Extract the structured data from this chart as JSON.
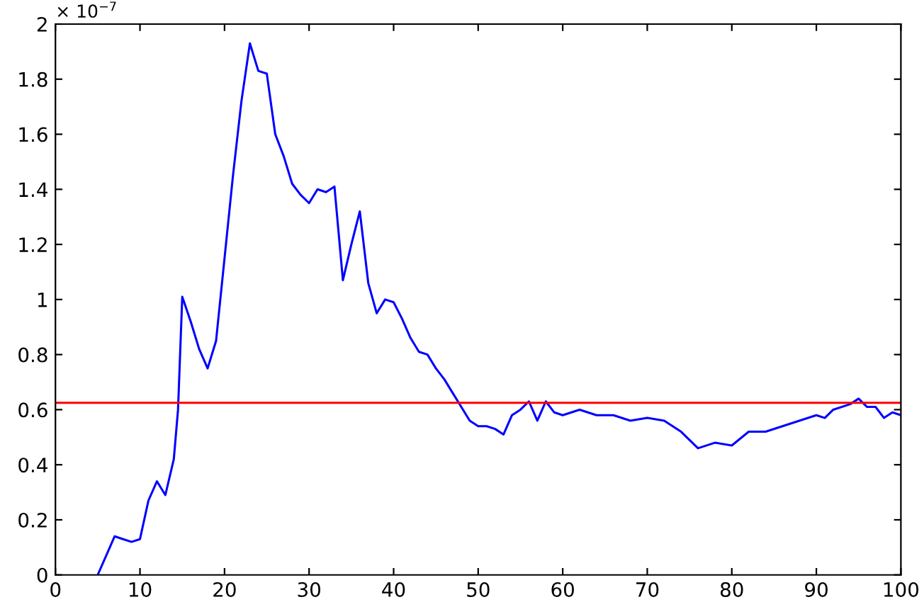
{
  "chart_data": {
    "type": "line",
    "x": [
      5,
      6,
      7,
      8,
      9,
      10,
      11,
      12,
      13,
      14,
      14.5,
      15,
      16,
      17,
      18,
      19,
      20,
      21,
      22,
      23,
      24,
      25,
      26,
      27,
      28,
      29,
      30,
      31,
      32,
      33,
      34,
      35,
      36,
      37,
      38,
      39,
      40,
      41,
      42,
      43,
      44,
      45,
      46,
      47,
      48,
      49,
      50,
      51,
      52,
      53,
      54,
      55,
      56,
      57,
      58,
      59,
      60,
      62,
      64,
      66,
      68,
      70,
      72,
      74,
      76,
      78,
      80,
      82,
      84,
      86,
      88,
      90,
      91,
      92,
      94,
      95,
      96,
      97,
      98,
      99,
      100
    ],
    "series": [
      {
        "color": "#0000ff",
        "values": [
          0,
          0.07,
          0.14,
          0.13,
          0.12,
          0.13,
          0.27,
          0.34,
          0.29,
          0.42,
          0.6,
          1.01,
          0.92,
          0.82,
          0.75,
          0.85,
          1.15,
          1.45,
          1.72,
          1.93,
          1.83,
          1.82,
          1.6,
          1.52,
          1.42,
          1.38,
          1.35,
          1.4,
          1.39,
          1.41,
          1.07,
          1.2,
          1.32,
          1.06,
          0.95,
          1.0,
          0.99,
          0.93,
          0.86,
          0.81,
          0.8,
          0.75,
          0.71,
          0.66,
          0.61,
          0.56,
          0.54,
          0.54,
          0.53,
          0.51,
          0.58,
          0.6,
          0.63,
          0.56,
          0.63,
          0.59,
          0.58,
          0.6,
          0.58,
          0.58,
          0.56,
          0.57,
          0.56,
          0.52,
          0.46,
          0.48,
          0.47,
          0.52,
          0.52,
          0.54,
          0.56,
          0.58,
          0.57,
          0.6,
          0.62,
          0.64,
          0.61,
          0.61,
          0.57,
          0.59,
          0.58
        ]
      }
    ],
    "ref_lines": [
      {
        "axis": "y",
        "value": 0.625,
        "color": "#ff0000",
        "line_style": "solid"
      }
    ],
    "annotations": [
      "× 10$^{−7}$"
    ],
    "xlim": [
      0,
      100
    ],
    "xticks": [
      0,
      10,
      20,
      30,
      40,
      50,
      60,
      70,
      80,
      90,
      100
    ],
    "ylim": [
      0,
      2
    ],
    "yticks": [
      0,
      0.2,
      0.4,
      0.6,
      0.8,
      1,
      1.2,
      1.4,
      1.6,
      1.8,
      2
    ],
    "grid": false,
    "legend": false,
    "marker": "none",
    "line_style": "solid"
  }
}
